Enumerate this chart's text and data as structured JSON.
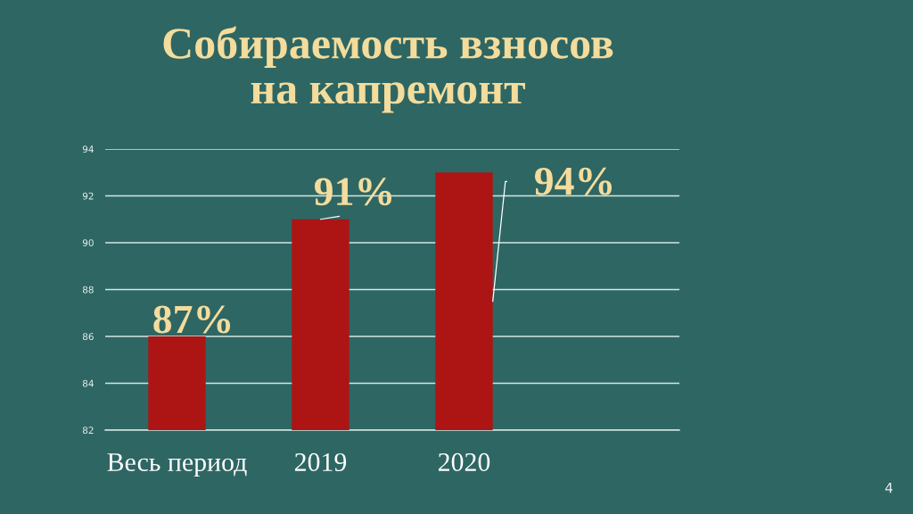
{
  "chart_data": {
    "type": "bar",
    "title": "Собираемость взносов\nна капремонт",
    "categories": [
      "Весь период",
      "2019",
      "2020",
      null
    ],
    "values": [
      86,
      91,
      93,
      null
    ],
    "color": "#ad1515",
    "ylim": [
      82,
      94
    ],
    "yticks": [
      82,
      84,
      86,
      88,
      90,
      92,
      94
    ],
    "grid": "y",
    "annotations": [
      {
        "text": "87%",
        "x": "Весь период",
        "y": 86
      },
      {
        "text": "91%",
        "x": "2019",
        "y": 91
      },
      {
        "text": "94%",
        "x": "2020",
        "y": 93
      },
      "4"
    ]
  }
}
